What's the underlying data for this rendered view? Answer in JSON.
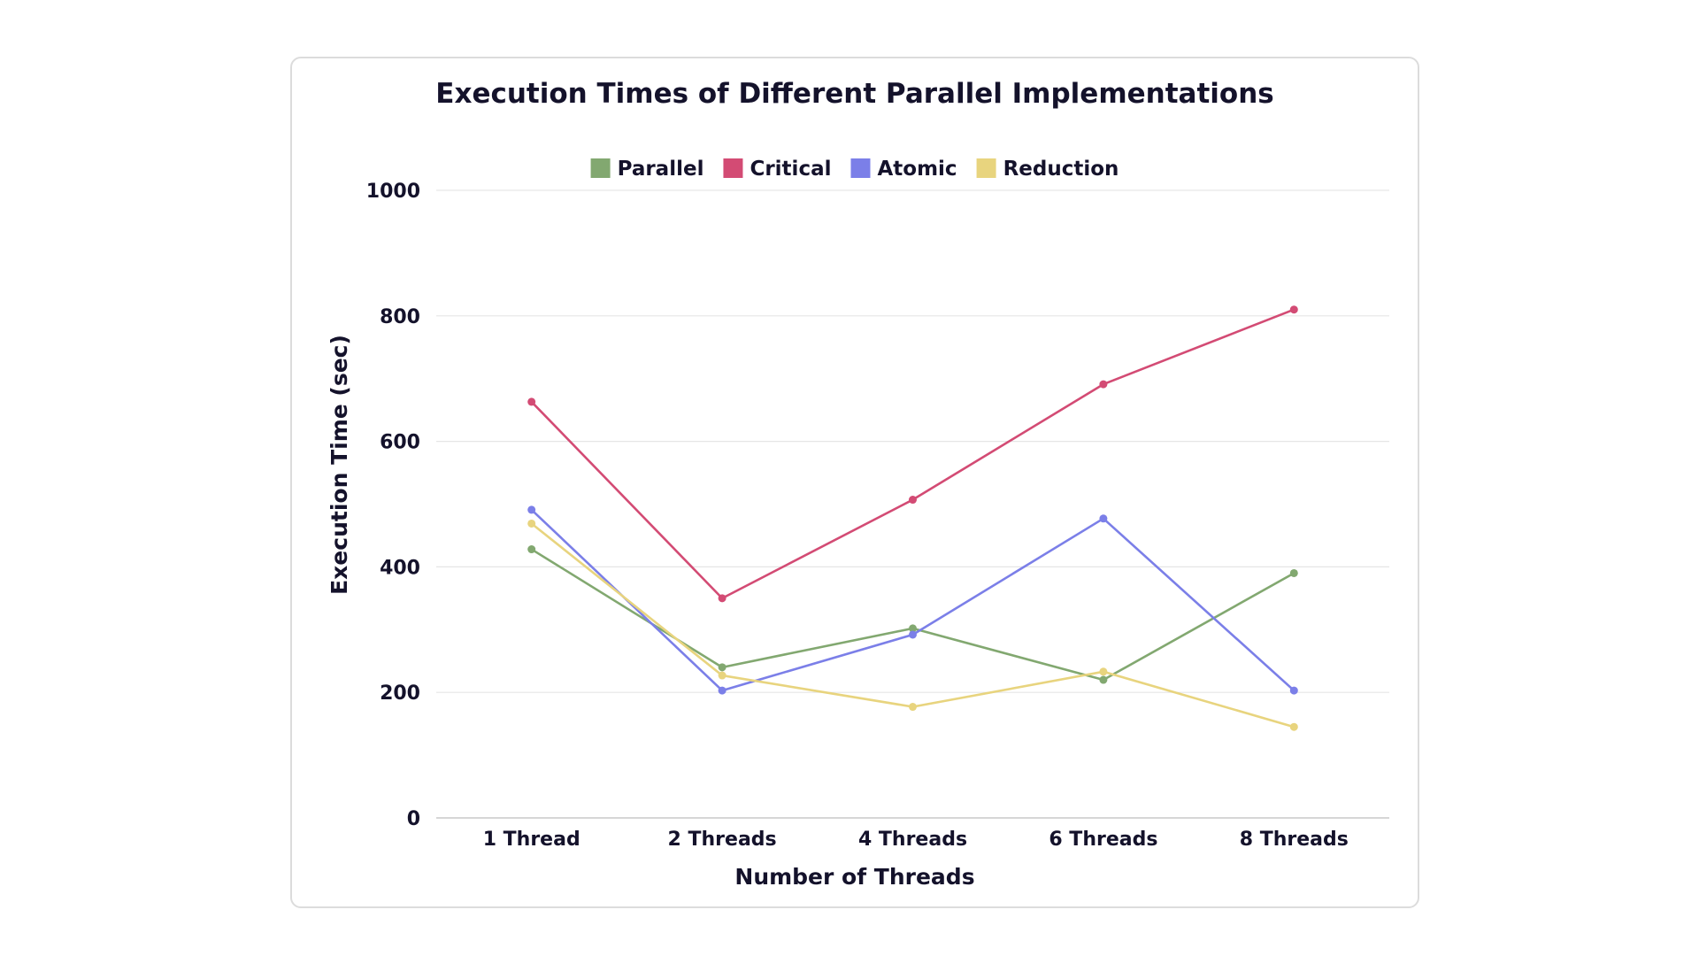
{
  "chart_data": {
    "type": "line",
    "title": "Execution Times of Different Parallel Implementations",
    "xlabel": "Number of Threads",
    "ylabel": "Execution Time (sec)",
    "categories": [
      "1 Thread",
      "2 Threads",
      "4 Threads",
      "6 Threads",
      "8 Threads"
    ],
    "ylim": [
      0,
      1000
    ],
    "yticks": [
      "0",
      "200",
      "400",
      "600",
      "800",
      "1000"
    ],
    "grid": true,
    "legend_position": "top",
    "series": [
      {
        "name": "Parallel",
        "color": "#82a870",
        "values": [
          428,
          240,
          302,
          220,
          390
        ]
      },
      {
        "name": "Critical",
        "color": "#d34b74",
        "values": [
          663,
          350,
          507,
          691,
          810
        ]
      },
      {
        "name": "Atomic",
        "color": "#7b7fe8",
        "values": [
          491,
          203,
          292,
          477,
          203
        ]
      },
      {
        "name": "Reduction",
        "color": "#e8d47e",
        "values": [
          469,
          227,
          177,
          233,
          145
        ]
      }
    ]
  }
}
